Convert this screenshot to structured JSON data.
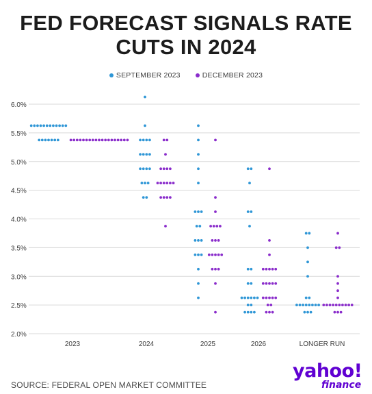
{
  "header": {
    "title_line1": "FED FORECAST SIGNALS RATE",
    "title_line2": "CUTS IN 2024"
  },
  "footer": {
    "source": "SOURCE: FEDERAL OPEN MARKET COMMITTEE",
    "logo_word": "yahoo!",
    "logo_sub": "finance"
  },
  "colors": {
    "september": "#2e96d6",
    "december": "#8a2ccb",
    "gridline": "#d9d9d9",
    "text": "#3a3a3a"
  },
  "chart_data": {
    "type": "scatter",
    "title": "FED FORECAST SIGNALS RATE CUTS IN 2024",
    "categories": [
      "2023",
      "2024",
      "2025",
      "2026",
      "LONGER RUN"
    ],
    "ylim": [
      2.0,
      6.0
    ],
    "yticks": [
      "6.0%",
      "5.5%",
      "5.0%",
      "4.5%",
      "4.0%",
      "3.5%",
      "3.0%",
      "2.5%",
      "2.0%"
    ],
    "grid": true,
    "legend_position": "top-center",
    "series": [
      {
        "name": "SEPTEMBER 2023",
        "points": [
          {
            "x": "2023",
            "y": 5.625,
            "count": 12
          },
          {
            "x": "2023",
            "y": 5.375,
            "count": 7
          },
          {
            "x": "2024",
            "y": 6.125,
            "count": 1
          },
          {
            "x": "2024",
            "y": 5.625,
            "count": 1
          },
          {
            "x": "2024",
            "y": 5.375,
            "count": 4
          },
          {
            "x": "2024",
            "y": 5.125,
            "count": 4
          },
          {
            "x": "2024",
            "y": 4.875,
            "count": 4
          },
          {
            "x": "2024",
            "y": 4.625,
            "count": 3
          },
          {
            "x": "2024",
            "y": 4.375,
            "count": 2
          },
          {
            "x": "2025",
            "y": 5.625,
            "count": 1
          },
          {
            "x": "2025",
            "y": 5.375,
            "count": 1
          },
          {
            "x": "2025",
            "y": 5.125,
            "count": 1
          },
          {
            "x": "2025",
            "y": 4.875,
            "count": 1
          },
          {
            "x": "2025",
            "y": 4.625,
            "count": 1
          },
          {
            "x": "2025",
            "y": 4.125,
            "count": 3
          },
          {
            "x": "2025",
            "y": 3.875,
            "count": 2
          },
          {
            "x": "2025",
            "y": 3.625,
            "count": 3
          },
          {
            "x": "2025",
            "y": 3.375,
            "count": 3
          },
          {
            "x": "2025",
            "y": 3.125,
            "count": 1
          },
          {
            "x": "2025",
            "y": 2.875,
            "count": 1
          },
          {
            "x": "2025",
            "y": 2.625,
            "count": 1
          },
          {
            "x": "2026",
            "y": 4.875,
            "count": 2
          },
          {
            "x": "2026",
            "y": 4.625,
            "count": 1
          },
          {
            "x": "2026",
            "y": 4.125,
            "count": 2
          },
          {
            "x": "2026",
            "y": 3.875,
            "count": 1
          },
          {
            "x": "2026",
            "y": 3.125,
            "count": 2
          },
          {
            "x": "2026",
            "y": 2.875,
            "count": 2
          },
          {
            "x": "2026",
            "y": 2.625,
            "count": 6
          },
          {
            "x": "2026",
            "y": 2.5,
            "count": 2
          },
          {
            "x": "2026",
            "y": 2.375,
            "count": 4
          },
          {
            "x": "LONGER RUN",
            "y": 3.75,
            "count": 2
          },
          {
            "x": "LONGER RUN",
            "y": 3.5,
            "count": 1
          },
          {
            "x": "LONGER RUN",
            "y": 3.25,
            "count": 1
          },
          {
            "x": "LONGER RUN",
            "y": 3.0,
            "count": 1
          },
          {
            "x": "LONGER RUN",
            "y": 2.625,
            "count": 2
          },
          {
            "x": "LONGER RUN",
            "y": 2.5,
            "count": 8
          },
          {
            "x": "LONGER RUN",
            "y": 2.375,
            "count": 3
          }
        ]
      },
      {
        "name": "DECEMBER 2023",
        "points": [
          {
            "x": "2023",
            "y": 5.375,
            "count": 19
          },
          {
            "x": "2024",
            "y": 5.375,
            "count": 2
          },
          {
            "x": "2024",
            "y": 5.125,
            "count": 1
          },
          {
            "x": "2024",
            "y": 4.875,
            "count": 4
          },
          {
            "x": "2024",
            "y": 4.625,
            "count": 6
          },
          {
            "x": "2024",
            "y": 4.375,
            "count": 4
          },
          {
            "x": "2024",
            "y": 3.875,
            "count": 1
          },
          {
            "x": "2025",
            "y": 5.375,
            "count": 1
          },
          {
            "x": "2025",
            "y": 4.375,
            "count": 1
          },
          {
            "x": "2025",
            "y": 4.125,
            "count": 1
          },
          {
            "x": "2025",
            "y": 3.875,
            "count": 4
          },
          {
            "x": "2025",
            "y": 3.625,
            "count": 3
          },
          {
            "x": "2025",
            "y": 3.375,
            "count": 5
          },
          {
            "x": "2025",
            "y": 3.125,
            "count": 3
          },
          {
            "x": "2025",
            "y": 2.875,
            "count": 1
          },
          {
            "x": "2025",
            "y": 2.375,
            "count": 1
          },
          {
            "x": "2026",
            "y": 4.875,
            "count": 1
          },
          {
            "x": "2026",
            "y": 3.625,
            "count": 1
          },
          {
            "x": "2026",
            "y": 3.375,
            "count": 1
          },
          {
            "x": "2026",
            "y": 3.125,
            "count": 5
          },
          {
            "x": "2026",
            "y": 2.875,
            "count": 5
          },
          {
            "x": "2026",
            "y": 2.625,
            "count": 5
          },
          {
            "x": "2026",
            "y": 2.5,
            "count": 2
          },
          {
            "x": "2026",
            "y": 2.375,
            "count": 3
          },
          {
            "x": "LONGER RUN",
            "y": 3.75,
            "count": 1
          },
          {
            "x": "LONGER RUN",
            "y": 3.5,
            "count": 2
          },
          {
            "x": "LONGER RUN",
            "y": 3.0,
            "count": 1
          },
          {
            "x": "LONGER RUN",
            "y": 2.875,
            "count": 1
          },
          {
            "x": "LONGER RUN",
            "y": 2.75,
            "count": 1
          },
          {
            "x": "LONGER RUN",
            "y": 2.625,
            "count": 1
          },
          {
            "x": "LONGER RUN",
            "y": 2.5,
            "count": 10
          },
          {
            "x": "LONGER RUN",
            "y": 2.375,
            "count": 3
          }
        ]
      }
    ]
  }
}
